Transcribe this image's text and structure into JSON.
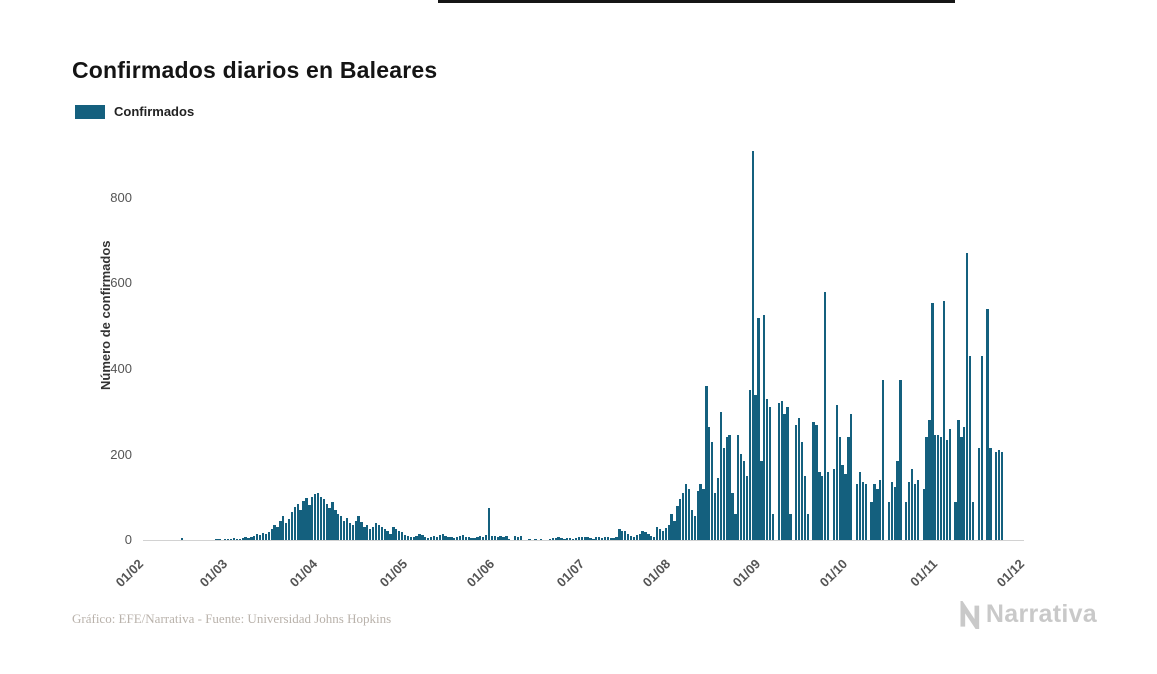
{
  "page": {
    "title": "Confirmados diarios en Baleares",
    "footer_credit": "Gráfico: EFE/Narrativa - Fuente: Universidad Johns Hopkins",
    "brand_name": "Narrativa"
  },
  "legend": {
    "label": "Confirmados",
    "color": "#14607e"
  },
  "chart_data": {
    "type": "bar",
    "title": "Confirmados diarios en Baleares",
    "series_name": "Confirmados",
    "xlabel": "",
    "ylabel": "Número de confirmados",
    "bar_color": "#14607e",
    "grid": false,
    "legend_position": "top-left",
    "ylim": [
      0,
      912
    ],
    "y_ticks": [
      0,
      200,
      400,
      600,
      800
    ],
    "x_tick_labels": [
      "01/02",
      "01/03",
      "01/04",
      "01/05",
      "01/06",
      "01/07",
      "01/08",
      "01/09",
      "01/10",
      "01/11",
      "01/12"
    ],
    "x_tick_day_offsets": [
      0,
      29,
      60,
      91,
      121,
      152,
      182,
      213,
      243,
      274,
      304
    ],
    "x_start_label": "01/02",
    "values": [
      0,
      0,
      0,
      0,
      0,
      0,
      0,
      0,
      0,
      0,
      0,
      0,
      0,
      5,
      0,
      0,
      0,
      0,
      0,
      0,
      0,
      0,
      0,
      0,
      0,
      2,
      1,
      0,
      2,
      3,
      2,
      4,
      3,
      2,
      4,
      6,
      5,
      8,
      10,
      14,
      12,
      16,
      14,
      18,
      25,
      35,
      30,
      45,
      55,
      40,
      50,
      65,
      78,
      85,
      70,
      92,
      98,
      82,
      100,
      108,
      110,
      100,
      95,
      85,
      75,
      90,
      70,
      60,
      55,
      45,
      52,
      40,
      35,
      45,
      55,
      42,
      30,
      35,
      25,
      30,
      40,
      35,
      30,
      25,
      20,
      15,
      30,
      25,
      20,
      18,
      12,
      10,
      8,
      6,
      10,
      15,
      12,
      8,
      5,
      6,
      10,
      8,
      12,
      15,
      10,
      8,
      6,
      5,
      8,
      10,
      12,
      8,
      6,
      4,
      5,
      8,
      10,
      6,
      12,
      75,
      10,
      10,
      8,
      10,
      8,
      10,
      2,
      0,
      10,
      8,
      10,
      0,
      0,
      2,
      0,
      3,
      0,
      2,
      0,
      0,
      3,
      5,
      4,
      6,
      5,
      3,
      5,
      4,
      3,
      5,
      8,
      8,
      6,
      8,
      5,
      3,
      6,
      8,
      5,
      6,
      8,
      5,
      4,
      6,
      25,
      20,
      22,
      15,
      10,
      8,
      12,
      15,
      20,
      18,
      15,
      10,
      8,
      30,
      25,
      20,
      28,
      35,
      60,
      45,
      80,
      95,
      110,
      130,
      120,
      70,
      55,
      115,
      130,
      120,
      360,
      265,
      230,
      110,
      145,
      300,
      215,
      240,
      245,
      110,
      60,
      245,
      200,
      185,
      150,
      350,
      910,
      340,
      520,
      185,
      525,
      330,
      310,
      60,
      0,
      320,
      325,
      295,
      310,
      60,
      0,
      270,
      285,
      230,
      150,
      60,
      0,
      275,
      270,
      160,
      150,
      580,
      160,
      0,
      165,
      315,
      240,
      175,
      155,
      240,
      295,
      0,
      130,
      160,
      135,
      130,
      0,
      90,
      130,
      120,
      140,
      375,
      0,
      90,
      135,
      125,
      185,
      375,
      0,
      90,
      135,
      165,
      130,
      140,
      0,
      120,
      240,
      280,
      555,
      245,
      245,
      240,
      560,
      235,
      260,
      0,
      90,
      280,
      240,
      265,
      670,
      430,
      90,
      0,
      215,
      430,
      0,
      540,
      215,
      0,
      205,
      210,
      205
    ]
  }
}
